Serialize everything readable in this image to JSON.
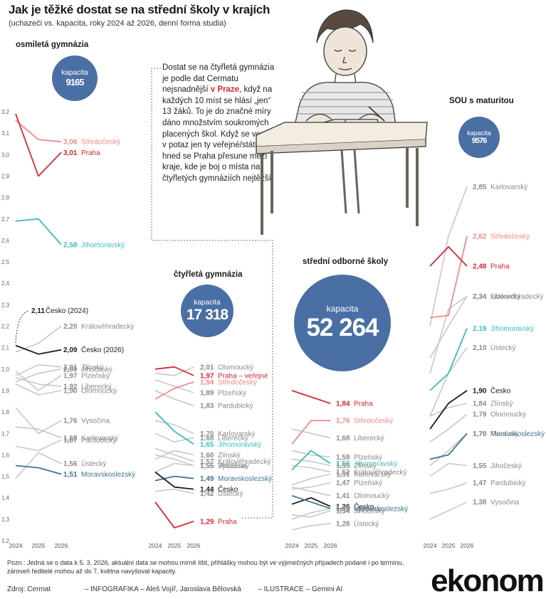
{
  "title": "Jak je těžké dostat se na střední školy v krajích",
  "subtitle": "(uchazeči vs. kapacita, roky 2024 až 2026, denní forma studia)",
  "note": {
    "p1": "Dostat se na čtyřletá gymnázia je podle dat Cermatu nejsnadnější",
    "highlight": "v Praze",
    "p2": ", když na každých 10 míst se hlásí „jen“ 13 žáků. To je do značné míry dáno množstvím soukromých placených škol. Když se vezmou v potaz jen ty veřejné/státní, hned se Praha přesune mezi kraje, kde je boj o místa na čtyřletých gymnáziích nejtěžší."
  },
  "footnote": "Pozn.: Jedná se o data k 5. 3. 2026, aktuální data se mohou mírně lišit, přihlášky mohou být ve výjimečných případech podané i po termínu, zároveň ředitelé mohou až do 7. května navyšovat kapacity.",
  "credits": {
    "source": "Zdroj: Cermat",
    "infographic": "– INFOGRAFIKA – Aleš Vojíř, Jaroslava Bělovská",
    "illustration": "– ILUSTRACE – Gemini AI"
  },
  "logo": "ekonom",
  "colors": {
    "bubble": "#4a6fa5",
    "praha": "#d42a35",
    "stredocesky": "#f08a8a",
    "jihomoravsky": "#3bbcc4",
    "moravskoslezsky": "#3e7590",
    "cesko": "#1a1a1a",
    "other": "#c8c8c8"
  },
  "chart_data": [
    {
      "type": "line",
      "title": "osmiletá gymnázia",
      "capacity_label": "kapacita",
      "capacity": "9165",
      "x": [
        "2024",
        "2025",
        "2026"
      ],
      "ylim": [
        1.2,
        3.2
      ],
      "yticks": [
        "1,2",
        "1,3",
        "1,4",
        "1,5",
        "1,6",
        "1,7",
        "1,8",
        "1,9",
        "2,0",
        "2,1",
        "2,2",
        "2,3",
        "2,4",
        "2,5",
        "2,6",
        "2,7",
        "2,8",
        "2,9",
        "3,0",
        "3,1",
        "3,2"
      ],
      "series": [
        {
          "name": "Středočeský",
          "label": "3,06",
          "color": "stredocesky",
          "values": [
            3.16,
            3.07,
            3.06
          ]
        },
        {
          "name": "Praha",
          "label": "3,01",
          "color": "praha",
          "values": [
            3.19,
            2.9,
            3.01
          ]
        },
        {
          "name": "Jihomoravský",
          "label": "2,58",
          "color": "jihomoravsky",
          "values": [
            2.69,
            2.7,
            2.58
          ]
        },
        {
          "name": "Královéhradecký",
          "label": "2,20",
          "color": "other",
          "values": [
            2.08,
            2.12,
            2.2
          ]
        },
        {
          "name": "Česko (2026)",
          "label": "2,09",
          "color": "cesko",
          "values": [
            2.11,
            2.07,
            2.09
          ]
        },
        {
          "name": "Zlínský",
          "label": "2,01",
          "color": "other",
          "values": [
            1.97,
            2.02,
            2.01
          ]
        },
        {
          "name": "Jihočeský",
          "label": "2,00",
          "color": "other",
          "values": [
            1.94,
            1.98,
            2.0
          ]
        },
        {
          "name": "Plzeňský",
          "label": "1,97",
          "color": "other",
          "values": [
            1.99,
            1.9,
            1.97
          ]
        },
        {
          "name": "Liberecký",
          "label": "1,92",
          "color": "other",
          "values": [
            1.96,
            1.93,
            1.92
          ]
        },
        {
          "name": "Olomoucký",
          "label": "1,90",
          "color": "other",
          "values": [
            1.93,
            1.88,
            1.9
          ]
        },
        {
          "name": "Vysočina",
          "label": "1,76",
          "color": "other",
          "values": [
            1.82,
            1.7,
            1.76
          ]
        },
        {
          "name": "Karlovarský",
          "label": "1,68",
          "color": "other",
          "values": [
            1.73,
            1.72,
            1.68
          ]
        },
        {
          "name": "Pardubický",
          "label": "1,67",
          "color": "other",
          "values": [
            1.64,
            1.62,
            1.67
          ]
        },
        {
          "name": "Ústecký",
          "label": "1,56",
          "color": "other",
          "values": [
            1.49,
            1.61,
            1.56
          ]
        },
        {
          "name": "Moravskoslezský",
          "label": "1,51",
          "color": "moravskoslezsky",
          "values": [
            1.55,
            1.54,
            1.51
          ]
        }
      ],
      "annotation": {
        "label": "2,11",
        "text": "Česko (2024)"
      }
    },
    {
      "type": "line",
      "title": "čtyřletá gymnázia",
      "capacity_label": "kapacita",
      "capacity": "17 318",
      "x": [
        "2024",
        "2025",
        "2026"
      ],
      "series": [
        {
          "name": "Olomoucký",
          "label": "2,01",
          "color": "other",
          "values": [
            1.98,
            1.97,
            2.01
          ]
        },
        {
          "name": "Praha – veřejné",
          "label": "1,97",
          "color": "praha",
          "values": [
            2.0,
            2.01,
            1.97
          ]
        },
        {
          "name": "Středočeský",
          "label": "1,94",
          "color": "stredocesky",
          "values": [
            1.86,
            1.91,
            1.94
          ]
        },
        {
          "name": "Plzeňský",
          "label": "1,89",
          "color": "other",
          "values": [
            1.95,
            1.92,
            1.89
          ]
        },
        {
          "name": "Pardubický",
          "label": "1,83",
          "color": "other",
          "values": [
            1.9,
            1.86,
            1.83
          ]
        },
        {
          "name": "Karlovarský",
          "label": "1,70",
          "color": "other",
          "values": [
            1.76,
            1.74,
            1.7
          ]
        },
        {
          "name": "Liberecký",
          "label": "1,68",
          "color": "other",
          "values": [
            1.7,
            1.66,
            1.68
          ]
        },
        {
          "name": "Jihomoravský",
          "label": "1,65",
          "color": "jihomoravsky",
          "values": [
            1.8,
            1.71,
            1.65
          ]
        },
        {
          "name": "Zlínský",
          "label": "1,60",
          "color": "other",
          "values": [
            1.58,
            1.62,
            1.6
          ]
        },
        {
          "name": "Královéhradecký",
          "label": "1,57",
          "color": "other",
          "values": [
            1.63,
            1.6,
            1.57
          ]
        },
        {
          "name": "Jihočeský",
          "label": "1,55",
          "color": "other",
          "values": [
            1.6,
            1.58,
            1.55
          ]
        },
        {
          "name": "Vysočina",
          "label": "1,55",
          "color": "other",
          "values": [
            1.52,
            1.56,
            1.55
          ]
        },
        {
          "name": "Moravskoslezský",
          "label": "1,49",
          "color": "moravskoslezsky",
          "values": [
            1.48,
            1.5,
            1.49
          ]
        },
        {
          "name": "Česko",
          "label": "1,44",
          "color": "cesko",
          "values": [
            1.52,
            1.45,
            1.44
          ]
        },
        {
          "name": "Ústecký",
          "label": "1,42",
          "color": "other",
          "values": [
            1.43,
            1.44,
            1.42
          ]
        },
        {
          "name": "Praha",
          "label": "1,29",
          "color": "praha",
          "values": [
            1.38,
            1.26,
            1.29
          ]
        }
      ]
    },
    {
      "type": "line",
      "title": "střední odborné školy",
      "capacity_label": "kapacita",
      "capacity": "52 264",
      "x": [
        "2024",
        "2025",
        "2026"
      ],
      "series": [
        {
          "name": "Praha",
          "label": "1,84",
          "color": "praha",
          "values": [
            1.9,
            1.87,
            1.84
          ]
        },
        {
          "name": "Středočeský",
          "label": "1,76",
          "color": "stredocesky",
          "values": [
            1.65,
            1.76,
            1.76
          ]
        },
        {
          "name": "Liberecký",
          "label": "1,68",
          "color": "other",
          "values": [
            1.72,
            1.7,
            1.68
          ]
        },
        {
          "name": "Plzeňský",
          "label": "1,59",
          "color": "other",
          "values": [
            1.62,
            1.6,
            1.59
          ]
        },
        {
          "name": "Jihomoravský",
          "label": "1,56",
          "color": "jihomoravsky",
          "values": [
            1.53,
            1.62,
            1.56
          ]
        },
        {
          "name": "Zlínský",
          "label": "1,55",
          "color": "other",
          "values": [
            1.58,
            1.57,
            1.55
          ]
        },
        {
          "name": "Královéhradecký",
          "label": "1,52",
          "color": "other",
          "values": [
            1.55,
            1.54,
            1.52
          ]
        },
        {
          "name": "Karlovarský",
          "label": "1,51",
          "color": "other",
          "values": [
            1.46,
            1.49,
            1.51
          ]
        },
        {
          "name": "Plzeňský",
          "label": "1,47",
          "color": "other",
          "values": [
            1.44,
            1.45,
            1.47
          ]
        },
        {
          "name": "Olomoucký",
          "label": "1,41",
          "color": "other",
          "values": [
            1.45,
            1.43,
            1.41
          ]
        },
        {
          "name": "Česko",
          "label": "1,36",
          "color": "cesko",
          "values": [
            1.37,
            1.4,
            1.36
          ]
        },
        {
          "name": "Moravskoslezský",
          "label": "1,35",
          "color": "moravskoslezsky",
          "values": [
            1.41,
            1.38,
            1.35
          ]
        },
        {
          "name": "Vysočina",
          "label": "1,35",
          "color": "other",
          "values": [
            1.3,
            1.33,
            1.35
          ]
        },
        {
          "name": "Jihočeský",
          "label": "1,34",
          "color": "other",
          "values": [
            1.32,
            1.31,
            1.34
          ]
        },
        {
          "name": "Ústecký",
          "label": "1,28",
          "color": "other",
          "values": [
            1.25,
            1.27,
            1.28
          ]
        }
      ]
    },
    {
      "type": "line",
      "title": "SOU s maturitou",
      "capacity_label": "kapacita",
      "capacity": "9576",
      "x": [
        "2024",
        "2025",
        "2026"
      ],
      "series": [
        {
          "name": "Karlovarský",
          "label": "2,85",
          "color": "other",
          "values": [
            2.2,
            2.62,
            2.85
          ]
        },
        {
          "name": "Středočeský",
          "label": "2,62",
          "color": "stredocesky",
          "values": [
            2.24,
            2.25,
            2.62
          ]
        },
        {
          "name": "Praha",
          "label": "2,48",
          "color": "praha",
          "values": [
            2.48,
            2.57,
            2.48
          ]
        },
        {
          "name": "Královéhradecký",
          "label": "2,34",
          "color": "other",
          "values": [
            2.05,
            2.2,
            2.34
          ]
        },
        {
          "name": "Liberecký",
          "label": "2,34",
          "color": "other",
          "values": [
            1.98,
            2.28,
            2.34
          ]
        },
        {
          "name": "Jihomoravský",
          "label": "2,19",
          "color": "jihomoravsky",
          "values": [
            1.9,
            1.98,
            2.19
          ]
        },
        {
          "name": "Ústecký",
          "label": "2,10",
          "color": "other",
          "values": [
            1.78,
            1.98,
            2.1
          ]
        },
        {
          "name": "Česko",
          "label": "1,90",
          "color": "cesko",
          "values": [
            1.72,
            1.84,
            1.9
          ]
        },
        {
          "name": "Zlínský",
          "label": "1,84",
          "color": "other",
          "values": [
            1.78,
            1.82,
            1.84
          ]
        },
        {
          "name": "Olomoucký",
          "label": "1,79",
          "color": "other",
          "values": [
            1.66,
            1.72,
            1.79
          ]
        },
        {
          "name": "Moravskoslezský",
          "label": "1,70",
          "color": "moravskoslezsky",
          "values": [
            1.58,
            1.6,
            1.7
          ]
        },
        {
          "name": "Plzeňský",
          "label": "1,70",
          "color": "other",
          "values": [
            1.55,
            1.62,
            1.7
          ]
        },
        {
          "name": "Jihočeský",
          "label": "1,55",
          "color": "other",
          "values": [
            1.5,
            1.56,
            1.55
          ]
        },
        {
          "name": "Pardubický",
          "label": "1,47",
          "color": "other",
          "values": [
            1.42,
            1.44,
            1.47
          ]
        },
        {
          "name": "Vysočina",
          "label": "1,38",
          "color": "other",
          "values": [
            1.3,
            1.34,
            1.38
          ]
        }
      ]
    }
  ]
}
